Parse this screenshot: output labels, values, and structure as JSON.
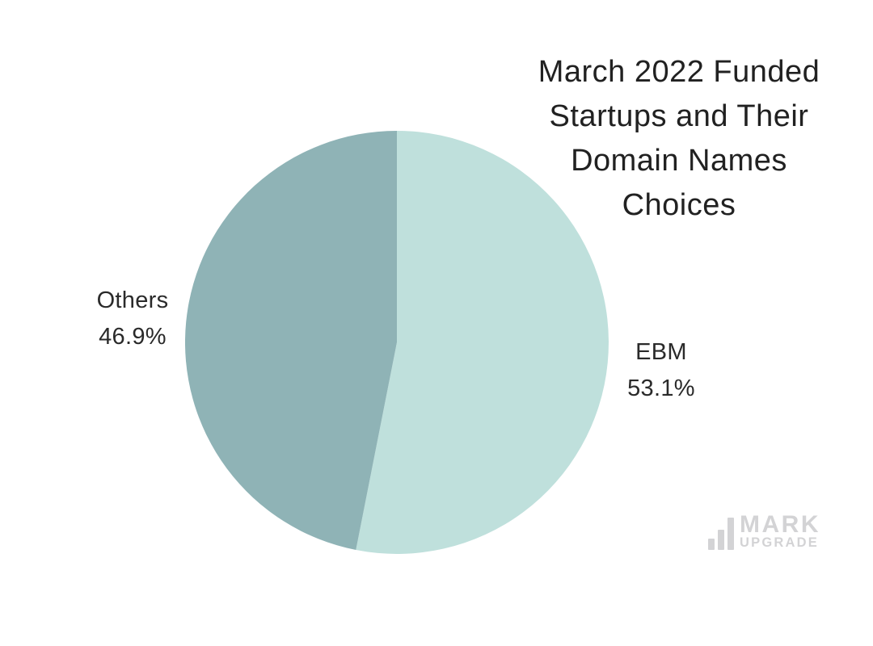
{
  "page": {
    "background": "#ffffff"
  },
  "chart_data": {
    "type": "pie",
    "title": "March 2022 Funded Startups and Their Domain Names Choices",
    "title_lines": [
      "March 2022 Funded",
      "Startups and Their",
      "Domain Names",
      "Choices"
    ],
    "categories": [
      "EBM",
      "Others"
    ],
    "values": [
      53.1,
      46.9
    ],
    "slices": [
      {
        "label": "EBM",
        "value": 53.1,
        "display": "53.1%",
        "color": "#bfe0dc"
      },
      {
        "label": "Others",
        "value": 46.9,
        "display": "46.9%",
        "color": "#8fb3b6"
      }
    ],
    "start_angle_deg": 0,
    "direction": "clockwise",
    "labels_position": "outside",
    "legend": "none",
    "title_color": "#212121",
    "label_color": "#2a2a2a"
  },
  "watermark": {
    "line1": "MARK",
    "line2": "UPGRADE",
    "icon": "bar-chart-icon",
    "color": "#d3d3d5"
  }
}
